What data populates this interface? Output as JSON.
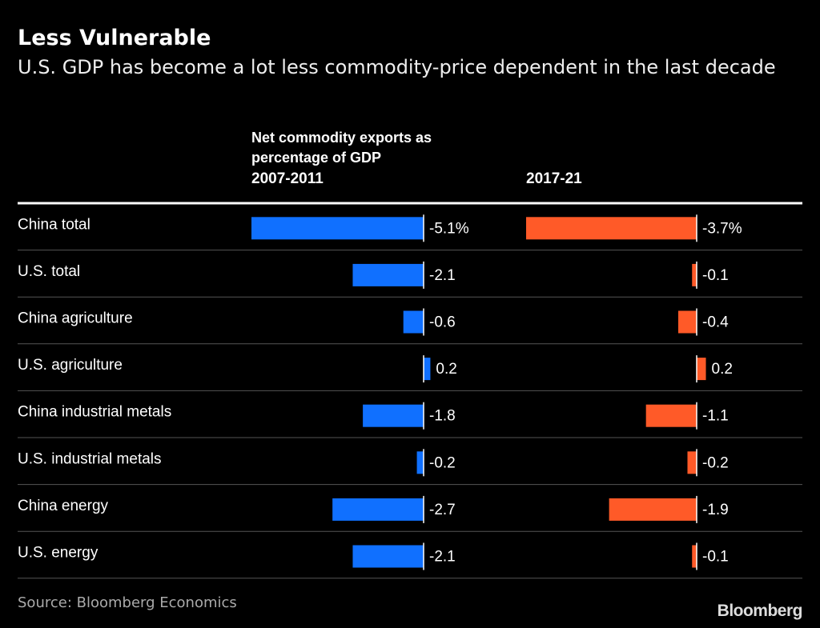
{
  "chart_data": {
    "type": "bar",
    "title": "Less Vulnerable",
    "subtitle": "U.S. GDP has become a lot less commodity-price dependent in the last decade",
    "value_axis_label": "Net commodity exports as percentage of GDP",
    "categories": [
      "China total",
      "U.S. total",
      "China agriculture",
      "U.S. agriculture",
      "China industrial metals",
      "U.S. industrial metals",
      "China energy",
      "U.S. energy"
    ],
    "series": [
      {
        "name": "2007-2011",
        "color": "#1070ff",
        "values": [
          -5.1,
          -2.1,
          -0.6,
          0.2,
          -1.8,
          -0.2,
          -2.7,
          -2.1
        ],
        "value_labels": [
          "-5.1%",
          "-2.1",
          "-0.6",
          "0.2",
          "-1.8",
          "-0.2",
          "-2.7",
          "-2.1"
        ]
      },
      {
        "name": "2017-21",
        "color": "#ff5a28",
        "values": [
          -3.7,
          -0.1,
          -0.4,
          0.2,
          -1.1,
          -0.2,
          -1.9,
          -0.1
        ],
        "value_labels": [
          "-3.7%",
          "-0.1",
          "-0.4",
          "0.2",
          "-1.1",
          "-0.2",
          "-1.9",
          "-0.1"
        ]
      }
    ],
    "source": "Source: Bloomberg Economics",
    "logo": "Bloomberg"
  }
}
